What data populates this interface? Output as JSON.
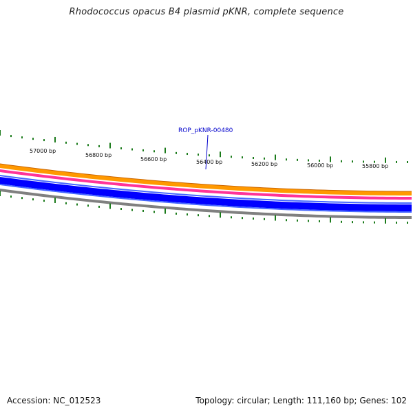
{
  "title": "Rhodococcus opacus B4 plasmid pKNR, complete sequence",
  "accession": {
    "label": "Accession:",
    "value": "NC_012523"
  },
  "topology": {
    "text": "Topology: circular; Length: 111,160 bp; Genes: 102"
  },
  "ticks": [
    "57000 bp",
    "56800 bp",
    "56600 bp",
    "56400 bp",
    "56200 bp",
    "56000 bp",
    "55800 bp"
  ],
  "gene_label": "ROP_pKNR-00480",
  "colors": {
    "tick_marks": "#1a7a1a",
    "ring_orange": "#ff9900",
    "ring_pink": "#ff3399",
    "ring_blue": "#0000ff",
    "ring_gray": "#808080",
    "gene_label": "#0000cc"
  }
}
